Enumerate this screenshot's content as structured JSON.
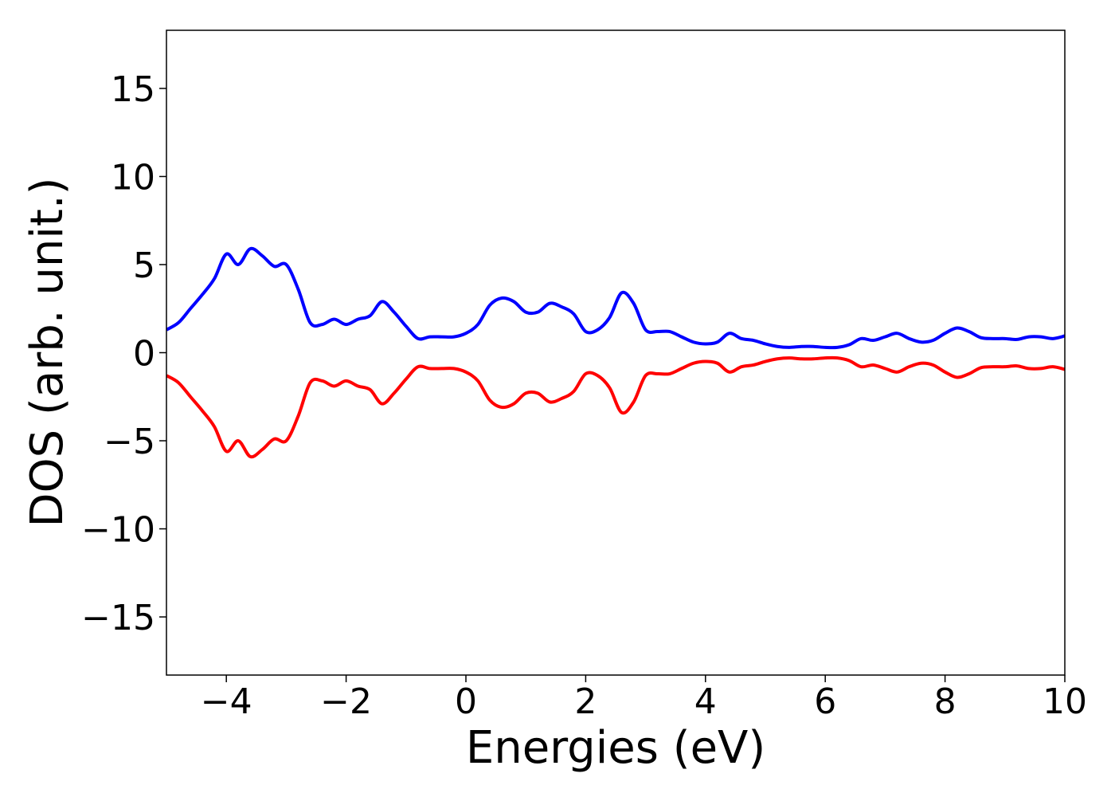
{
  "chart_data": {
    "type": "line",
    "title": "",
    "xlabel": "Energies (eV)",
    "ylabel": "DOS (arb. unit.)",
    "xlim": [
      -5,
      10
    ],
    "ylim": [
      -18.3,
      18.3
    ],
    "grid": false,
    "legend": "none",
    "x_ticks": [
      -4,
      -2,
      0,
      2,
      4,
      6,
      8,
      10
    ],
    "x_tick_labels": [
      "−4",
      "−2",
      "0",
      "2",
      "4",
      "6",
      "8",
      "10"
    ],
    "y_ticks": [
      -15,
      -10,
      -5,
      0,
      5,
      10,
      15
    ],
    "y_tick_labels": [
      "−15",
      "−10",
      "−5",
      "0",
      "5",
      "10",
      "15"
    ],
    "x": [
      -5.0,
      -4.8,
      -4.6,
      -4.4,
      -4.2,
      -4.0,
      -3.8,
      -3.6,
      -3.4,
      -3.2,
      -3.0,
      -2.8,
      -2.6,
      -2.4,
      -2.2,
      -2.0,
      -1.8,
      -1.6,
      -1.4,
      -1.2,
      -1.0,
      -0.8,
      -0.6,
      -0.4,
      -0.2,
      0.0,
      0.2,
      0.4,
      0.6,
      0.8,
      1.0,
      1.2,
      1.4,
      1.6,
      1.8,
      2.0,
      2.2,
      2.4,
      2.6,
      2.8,
      3.0,
      3.2,
      3.4,
      3.6,
      3.8,
      4.0,
      4.2,
      4.4,
      4.6,
      4.8,
      5.0,
      5.2,
      5.4,
      5.6,
      5.8,
      6.0,
      6.2,
      6.4,
      6.6,
      6.8,
      7.0,
      7.2,
      7.4,
      7.6,
      7.8,
      8.0,
      8.2,
      8.4,
      8.6,
      8.8,
      9.0,
      9.2,
      9.4,
      9.6,
      9.8,
      10.0
    ],
    "series": [
      {
        "color": "#0000ff",
        "values": [
          1.3,
          1.7,
          2.5,
          3.3,
          4.2,
          5.6,
          5.0,
          5.9,
          5.5,
          4.9,
          5.0,
          3.6,
          1.7,
          1.6,
          1.9,
          1.6,
          1.9,
          2.1,
          2.9,
          2.3,
          1.5,
          0.8,
          0.9,
          0.9,
          0.9,
          1.1,
          1.6,
          2.7,
          3.1,
          2.9,
          2.3,
          2.3,
          2.8,
          2.6,
          2.2,
          1.2,
          1.3,
          2.0,
          3.4,
          2.8,
          1.3,
          1.2,
          1.2,
          0.9,
          0.6,
          0.5,
          0.6,
          1.1,
          0.8,
          0.7,
          0.5,
          0.35,
          0.3,
          0.35,
          0.35,
          0.3,
          0.3,
          0.45,
          0.8,
          0.7,
          0.9,
          1.1,
          0.8,
          0.6,
          0.7,
          1.1,
          1.4,
          1.2,
          0.85,
          0.8,
          0.8,
          0.75,
          0.9,
          0.9,
          0.8,
          0.95
        ]
      },
      {
        "color": "#ff0000",
        "values": [
          -1.3,
          -1.7,
          -2.5,
          -3.3,
          -4.2,
          -5.6,
          -5.0,
          -5.9,
          -5.5,
          -4.9,
          -5.0,
          -3.6,
          -1.7,
          -1.6,
          -1.9,
          -1.6,
          -1.9,
          -2.1,
          -2.9,
          -2.3,
          -1.5,
          -0.8,
          -0.9,
          -0.9,
          -0.9,
          -1.1,
          -1.6,
          -2.7,
          -3.1,
          -2.9,
          -2.3,
          -2.3,
          -2.8,
          -2.6,
          -2.2,
          -1.2,
          -1.3,
          -2.0,
          -3.4,
          -2.8,
          -1.3,
          -1.2,
          -1.2,
          -0.9,
          -0.6,
          -0.5,
          -0.6,
          -1.1,
          -0.8,
          -0.7,
          -0.5,
          -0.35,
          -0.3,
          -0.35,
          -0.35,
          -0.3,
          -0.3,
          -0.45,
          -0.8,
          -0.7,
          -0.9,
          -1.1,
          -0.8,
          -0.6,
          -0.7,
          -1.1,
          -1.4,
          -1.2,
          -0.85,
          -0.8,
          -0.8,
          -0.75,
          -0.9,
          -0.9,
          -0.8,
          -0.95
        ]
      }
    ]
  }
}
